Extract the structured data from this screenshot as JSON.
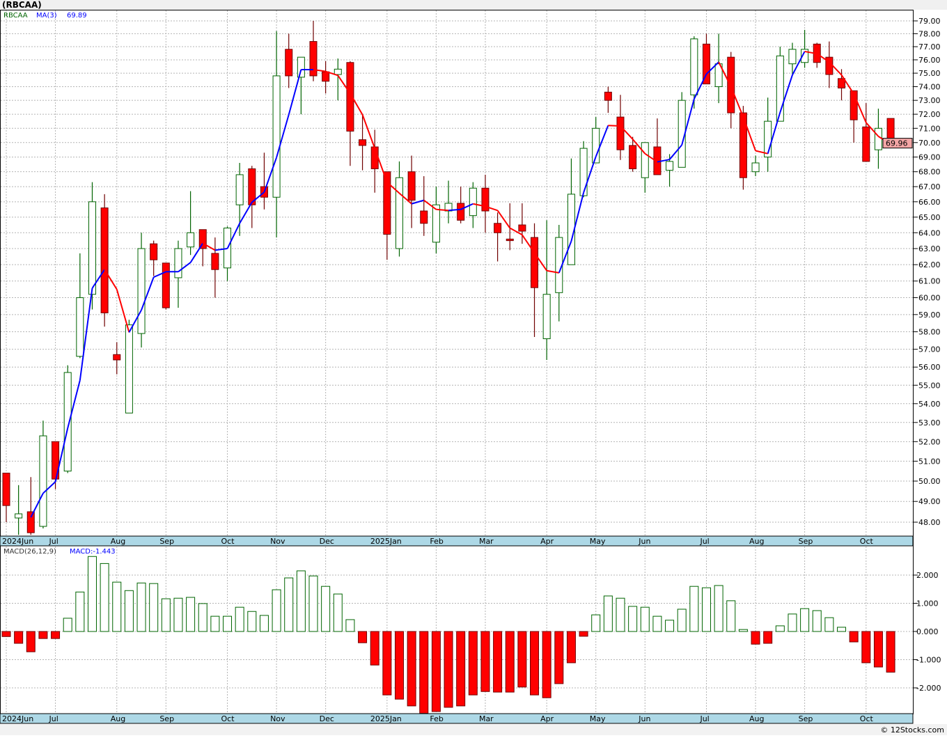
{
  "header": {
    "title": "(RBCAA)"
  },
  "legend": {
    "symbol": "RBCAA",
    "ma_label": "MA(3)",
    "ma_value": "69.89"
  },
  "macd_legend": {
    "label": "MACD(26,12,9)",
    "value": "MACD:-1.443"
  },
  "last_price_label": "69.96",
  "footer": "© 12Stocks.com",
  "colors": {
    "up": "#006400",
    "down": "#ff0000",
    "ma_up": "#0000ff",
    "ma_down": "#ff0000",
    "axis_strip": "#add8e6"
  },
  "chart_data": [
    {
      "type": "candlestick",
      "title": "(RBCAA)",
      "interval": "weekly",
      "scale": "log",
      "ylim": [
        47.4,
        79.3
      ],
      "y_ticks": [
        "79.00",
        "78.00",
        "77.00",
        "76.00",
        "75.00",
        "74.00",
        "73.00",
        "72.00",
        "71.00",
        "70.00",
        "69.00",
        "68.00",
        "67.00",
        "66.00",
        "65.00",
        "64.00",
        "63.00",
        "62.00",
        "61.00",
        "60.00",
        "59.00",
        "58.00",
        "57.00",
        "56.00",
        "55.00",
        "54.00",
        "53.00",
        "52.00",
        "51.00",
        "50.00",
        "49.00",
        "48.00"
      ],
      "x_labels": [
        {
          "label": "2024Jun",
          "index": 0
        },
        {
          "label": "Jul",
          "index": 4
        },
        {
          "label": "Aug",
          "index": 9
        },
        {
          "label": "Sep",
          "index": 13
        },
        {
          "label": "Oct",
          "index": 18
        },
        {
          "label": "Nov",
          "index": 22
        },
        {
          "label": "Dec",
          "index": 26
        },
        {
          "label": "2025Jan",
          "index": 31
        },
        {
          "label": "Feb",
          "index": 35
        },
        {
          "label": "Mar",
          "index": 39
        },
        {
          "label": "Apr",
          "index": 44
        },
        {
          "label": "May",
          "index": 48
        },
        {
          "label": "Jun",
          "index": 52
        },
        {
          "label": "Jul",
          "index": 57
        },
        {
          "label": "Aug",
          "index": 61
        },
        {
          "label": "Sep",
          "index": 65
        },
        {
          "label": "Oct",
          "index": 70
        }
      ],
      "ohlc_fields": [
        "open",
        "high",
        "low",
        "close"
      ],
      "candles": [
        [
          50.4,
          50.4,
          48.0,
          48.8
        ],
        [
          48.2,
          49.8,
          47.4,
          48.4
        ],
        [
          48.5,
          50.2,
          47.4,
          47.5
        ],
        [
          47.8,
          53.1,
          47.7,
          52.3
        ],
        [
          52.0,
          52.0,
          49.6,
          50.1
        ],
        [
          50.5,
          56.1,
          50.4,
          55.7
        ],
        [
          56.6,
          62.7,
          56.5,
          60.0
        ],
        [
          60.2,
          67.3,
          59.3,
          66.0
        ],
        [
          65.6,
          66.5,
          58.3,
          59.1
        ],
        [
          56.7,
          57.4,
          55.6,
          56.4
        ],
        [
          53.5,
          58.7,
          53.5,
          58.4
        ],
        [
          57.9,
          64.0,
          57.1,
          63.0
        ],
        [
          63.3,
          63.5,
          61.3,
          62.3
        ],
        [
          62.1,
          62.1,
          59.3,
          59.4
        ],
        [
          61.2,
          63.5,
          59.4,
          63.0
        ],
        [
          63.1,
          66.7,
          62.6,
          64.0
        ],
        [
          64.2,
          64.2,
          61.9,
          63.0
        ],
        [
          62.7,
          63.7,
          60.0,
          61.7
        ],
        [
          61.8,
          64.4,
          61.0,
          64.3
        ],
        [
          65.8,
          68.6,
          63.8,
          67.8
        ],
        [
          68.2,
          68.4,
          64.3,
          65.8
        ],
        [
          67.0,
          69.3,
          65.5,
          66.3
        ],
        [
          66.3,
          78.2,
          63.7,
          74.8
        ],
        [
          76.8,
          78.0,
          73.9,
          74.8
        ],
        [
          74.7,
          76.2,
          72.0,
          76.2
        ],
        [
          77.4,
          79.0,
          74.4,
          74.8
        ],
        [
          75.1,
          75.9,
          73.5,
          74.4
        ],
        [
          74.9,
          76.1,
          73.0,
          75.3
        ],
        [
          75.8,
          75.9,
          68.4,
          70.8
        ],
        [
          70.2,
          72.0,
          68.1,
          69.8
        ],
        [
          69.7,
          70.9,
          66.6,
          68.2
        ],
        [
          68.0,
          68.0,
          62.3,
          63.9
        ],
        [
          63.0,
          68.7,
          62.5,
          67.6
        ],
        [
          68.0,
          69.1,
          64.3,
          66.1
        ],
        [
          65.4,
          67.7,
          63.8,
          64.6
        ],
        [
          63.4,
          67.0,
          62.7,
          65.8
        ],
        [
          65.4,
          67.4,
          64.6,
          65.9
        ],
        [
          65.9,
          67.0,
          64.6,
          64.8
        ],
        [
          65.1,
          67.3,
          64.3,
          66.9
        ],
        [
          66.9,
          67.8,
          64.0,
          65.4
        ],
        [
          64.6,
          65.3,
          62.2,
          64.0
        ],
        [
          63.6,
          65.9,
          62.9,
          63.5
        ],
        [
          64.5,
          65.9,
          63.3,
          64.1
        ],
        [
          63.7,
          64.6,
          57.7,
          60.6
        ],
        [
          57.6,
          64.8,
          56.4,
          60.2
        ],
        [
          60.3,
          64.5,
          58.6,
          63.7
        ],
        [
          62.0,
          68.9,
          62.0,
          66.5
        ],
        [
          66.4,
          70.1,
          66.3,
          69.6
        ],
        [
          68.6,
          71.8,
          68.6,
          71.0
        ],
        [
          73.6,
          74.0,
          72.1,
          73.0
        ],
        [
          71.8,
          73.4,
          68.8,
          69.5
        ],
        [
          69.8,
          70.4,
          68.0,
          68.2
        ],
        [
          67.6,
          70.0,
          66.6,
          70.0
        ],
        [
          69.7,
          71.7,
          67.8,
          67.8
        ],
        [
          68.1,
          69.2,
          67.0,
          68.7
        ],
        [
          68.3,
          73.6,
          68.3,
          73.0
        ],
        [
          73.4,
          77.8,
          72.4,
          77.6
        ],
        [
          77.2,
          78.0,
          74.2,
          74.2
        ],
        [
          74.0,
          78.0,
          72.8,
          75.7
        ],
        [
          76.2,
          76.6,
          71.0,
          72.1
        ],
        [
          72.1,
          72.6,
          66.8,
          67.6
        ],
        [
          68.0,
          69.1,
          67.7,
          68.6
        ],
        [
          69.0,
          73.2,
          68.0,
          71.5
        ],
        [
          71.5,
          77.0,
          71.5,
          76.3
        ],
        [
          75.7,
          77.3,
          74.9,
          76.8
        ],
        [
          75.8,
          78.3,
          75.4,
          76.8
        ],
        [
          77.2,
          77.3,
          75.4,
          75.8
        ],
        [
          76.2,
          77.4,
          73.9,
          74.9
        ],
        [
          74.6,
          75.3,
          73.0,
          73.9
        ],
        [
          73.7,
          73.7,
          70.0,
          71.6
        ],
        [
          71.1,
          72.8,
          68.7,
          68.7
        ],
        [
          69.5,
          72.4,
          68.2,
          71.0
        ],
        [
          71.7,
          71.7,
          69.6,
          69.96
        ]
      ],
      "ma_period": 3
    },
    {
      "type": "bar",
      "title": "MACD(26,12,9)",
      "ylim": [
        -2.9,
        2.8
      ],
      "y_ticks": [
        "2.000",
        "1.000",
        "0.000",
        "-1.000",
        "-2.000"
      ],
      "values": [
        -0.18,
        -0.42,
        -0.72,
        -0.25,
        -0.25,
        0.47,
        1.4,
        2.66,
        2.41,
        1.75,
        1.45,
        1.72,
        1.7,
        1.16,
        1.18,
        1.21,
        0.99,
        0.54,
        0.54,
        0.86,
        0.71,
        0.57,
        1.48,
        1.9,
        2.15,
        1.97,
        1.6,
        1.33,
        0.42,
        -0.4,
        -1.19,
        -2.25,
        -2.4,
        -2.64,
        -2.9,
        -2.84,
        -2.69,
        -2.64,
        -2.25,
        -2.13,
        -2.15,
        -2.15,
        -1.97,
        -2.25,
        -2.35,
        -1.85,
        -1.11,
        -0.17,
        0.59,
        1.26,
        1.18,
        0.89,
        0.86,
        0.54,
        0.4,
        0.79,
        1.6,
        1.55,
        1.63,
        1.09,
        0.07,
        -0.45,
        -0.42,
        0.2,
        0.62,
        0.81,
        0.74,
        0.49,
        0.15,
        -0.37,
        -1.11,
        -1.26,
        -1.443
      ]
    }
  ]
}
